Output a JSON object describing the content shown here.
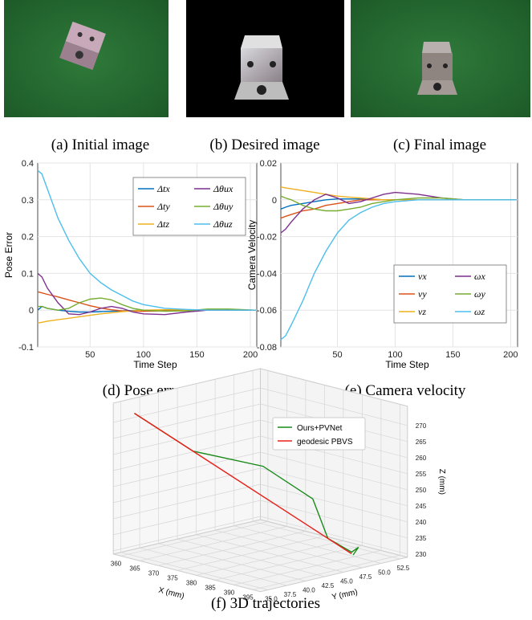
{
  "figures": [
    {
      "caption": "(a) Initial image"
    },
    {
      "caption": "(b) Desired image"
    },
    {
      "caption": "(c) Final image"
    }
  ],
  "chart_data": [
    {
      "type": "line",
      "caption": "(d) Pose error",
      "xlabel": "Time Step",
      "ylabel": "Pose Error",
      "x": [
        1,
        5,
        10,
        20,
        30,
        40,
        50,
        60,
        70,
        80,
        90,
        100,
        120,
        140,
        160,
        180,
        205
      ],
      "xlim": [
        1,
        206
      ],
      "xticks": [
        50,
        100,
        150,
        200
      ],
      "ylim": [
        -0.1,
        0.4
      ],
      "yticks": [
        -0.1,
        0,
        0.1,
        0.2,
        0.3,
        0.4
      ],
      "grid": true,
      "legend": "upper right",
      "series": [
        {
          "name": "Δtx",
          "color": "#0072BD",
          "values": [
            0,
            0.01,
            0.005,
            0,
            -0.003,
            -0.005,
            -0.005,
            -0.004,
            -0.003,
            -0.002,
            -0.001,
            0,
            0,
            0,
            0,
            0,
            0
          ]
        },
        {
          "name": "Δty",
          "color": "#D95319",
          "values": [
            0.05,
            0.047,
            0.043,
            0.036,
            0.028,
            0.02,
            0.012,
            0.006,
            0.001,
            -0.002,
            -0.003,
            -0.003,
            -0.002,
            -0.001,
            0,
            0,
            0
          ]
        },
        {
          "name": "Δtz",
          "color": "#EDB120",
          "values": [
            -0.035,
            -0.033,
            -0.03,
            -0.026,
            -0.022,
            -0.018,
            -0.014,
            -0.01,
            -0.007,
            -0.004,
            -0.002,
            0,
            0.001,
            0.001,
            0,
            0,
            0
          ]
        },
        {
          "name": "Δθux",
          "color": "#7E2F8E",
          "values": [
            0.1,
            0.09,
            0.06,
            0.02,
            -0.01,
            -0.012,
            -0.005,
            0.005,
            0.01,
            0.005,
            -0.005,
            -0.01,
            -0.012,
            -0.005,
            0,
            0,
            0
          ]
        },
        {
          "name": "Δθuy",
          "color": "#77AC30",
          "values": [
            0.01,
            0.01,
            0.005,
            0,
            0.005,
            0.02,
            0.03,
            0.033,
            0.028,
            0.015,
            0.005,
            0,
            -0.003,
            -0.002,
            0.003,
            0.003,
            0
          ]
        },
        {
          "name": "Δθuz",
          "color": "#4DBEEE",
          "values": [
            0.38,
            0.37,
            0.33,
            0.25,
            0.19,
            0.14,
            0.1,
            0.075,
            0.055,
            0.04,
            0.025,
            0.015,
            0.005,
            0.002,
            0,
            0,
            0
          ]
        }
      ]
    },
    {
      "type": "line",
      "caption": "(e) Camera velocity",
      "xlabel": "Time Step",
      "ylabel": "Camera Velocity",
      "x": [
        1,
        5,
        10,
        20,
        30,
        40,
        50,
        60,
        70,
        80,
        90,
        100,
        120,
        140,
        160,
        180,
        205
      ],
      "xlim": [
        1,
        206
      ],
      "xticks": [
        50,
        100,
        150,
        200
      ],
      "ylim": [
        -0.08,
        0.02
      ],
      "yticks": [
        -0.08,
        -0.06,
        -0.04,
        -0.02,
        0,
        0.02
      ],
      "grid": true,
      "legend": "lower right",
      "series": [
        {
          "name": "vx",
          "color": "#0072BD",
          "values": [
            -0.005,
            -0.004,
            -0.003,
            -0.002,
            -0.001,
            0,
            0.0005,
            0.0005,
            0.0005,
            0.0003,
            0,
            0,
            0,
            0,
            0,
            0,
            0
          ]
        },
        {
          "name": "vy",
          "color": "#D95319",
          "values": [
            -0.01,
            -0.009,
            -0.008,
            -0.006,
            -0.005,
            -0.003,
            -0.002,
            -0.001,
            0,
            0,
            0,
            0,
            0,
            0,
            0,
            0,
            0
          ]
        },
        {
          "name": "vz",
          "color": "#EDB120",
          "values": [
            0.007,
            0.0065,
            0.006,
            0.005,
            0.004,
            0.003,
            0.002,
            0.0015,
            0.001,
            0.0005,
            0,
            0,
            0,
            0,
            0,
            0,
            0
          ]
        },
        {
          "name": "ωx",
          "color": "#7E2F8E",
          "values": [
            -0.018,
            -0.016,
            -0.012,
            -0.005,
            0,
            0.003,
            0.001,
            -0.002,
            -0.001,
            0.001,
            0.003,
            0.004,
            0.003,
            0.001,
            0,
            0,
            0
          ]
        },
        {
          "name": "ωy",
          "color": "#77AC30",
          "values": [
            0.002,
            0.001,
            0,
            -0.003,
            -0.005,
            -0.006,
            -0.006,
            -0.005,
            -0.004,
            -0.002,
            -0.001,
            0,
            0.001,
            0.001,
            0,
            0,
            0
          ]
        },
        {
          "name": "ωz",
          "color": "#4DBEEE",
          "values": [
            -0.076,
            -0.074,
            -0.068,
            -0.055,
            -0.04,
            -0.028,
            -0.018,
            -0.011,
            -0.007,
            -0.004,
            -0.002,
            -0.001,
            0,
            0,
            0,
            0,
            0
          ]
        }
      ]
    },
    {
      "type": "line3d",
      "caption": "(f) 3D trajectories",
      "xlabel": "X (mm)",
      "ylabel": "Y (mm)",
      "zlabel": "Z (mm)",
      "xlim": [
        358,
        397
      ],
      "ylim": [
        34,
        53.5
      ],
      "zlim": [
        229,
        276
      ],
      "xticks": [
        360,
        365,
        370,
        375,
        380,
        385,
        390,
        395
      ],
      "yticks": [
        {
          "value": 35,
          "label": "35.0"
        },
        37.5,
        {
          "value": 40,
          "label": "40.0"
        },
        42.5,
        {
          "value": 45,
          "label": "45.0"
        },
        47.5,
        {
          "value": 50,
          "label": "50.0"
        },
        52.5
      ],
      "zticks": [
        230,
        235,
        240,
        245,
        250,
        255,
        260,
        265,
        270
      ],
      "grid": true,
      "legend": "upper right",
      "series": [
        {
          "name": "Ours+PVNet",
          "color": "#1a8a1a",
          "x": [
            361,
            370.2,
            381.1,
            388.9,
            391.3,
            395,
            395,
            395
          ],
          "y": [
            35.3,
            38.5,
            42.3,
            45,
            45.8,
            47.1,
            48,
            47.3
          ],
          "z": [
            273,
            262.2,
            258.7,
            249.4,
            237.4,
            233.5,
            234.5,
            232.5
          ]
        },
        {
          "name": "geodesic PBVS",
          "color": "#e8201a",
          "x": [
            361,
            395
          ],
          "y": [
            35.3,
            47.1
          ],
          "z": [
            273,
            233
          ]
        }
      ]
    }
  ]
}
